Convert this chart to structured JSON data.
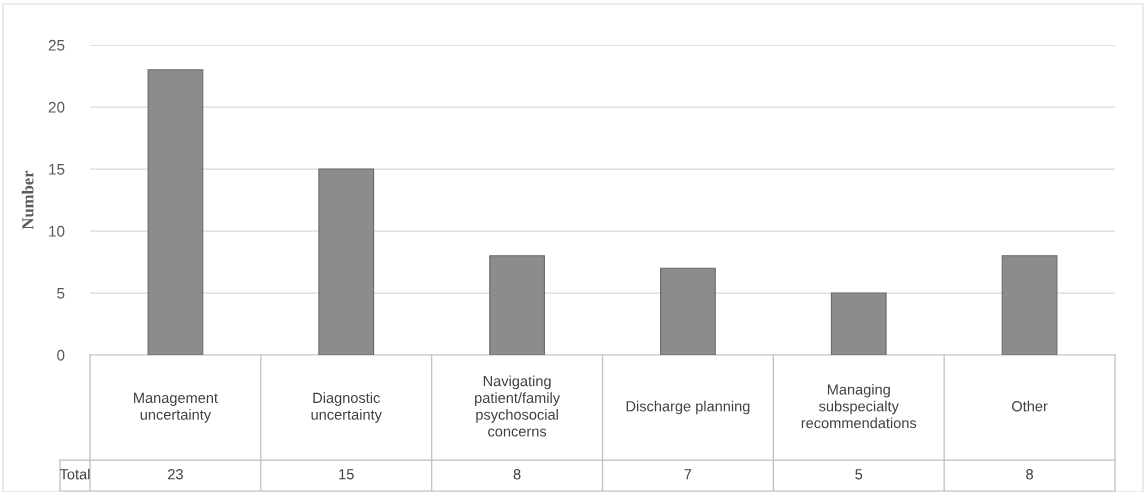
{
  "chart_data": {
    "type": "bar",
    "ylabel": "Number",
    "categories": [
      "Management uncertainty",
      "Diagnostic uncertainty",
      "Navigating patient/family psychosocial concerns",
      "Discharge planning",
      "Managing subspecialty recommendations",
      "Other"
    ],
    "series": [
      {
        "name": "Total",
        "color": "#8c8c8c",
        "values": [
          23,
          15,
          8,
          7,
          5,
          8
        ]
      }
    ],
    "ylim": [
      0,
      25
    ],
    "yticks": [
      0,
      5,
      10,
      15,
      20,
      25
    ],
    "grid": "y",
    "data_labels": true,
    "legend": false
  }
}
